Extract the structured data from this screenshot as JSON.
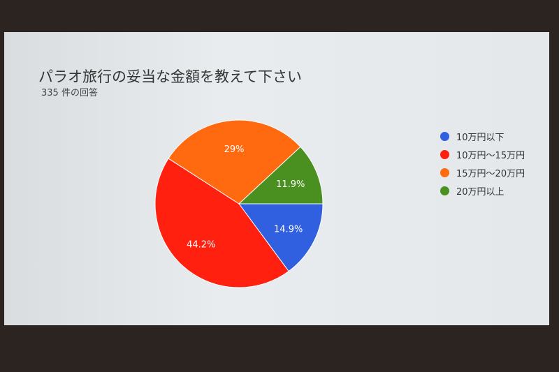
{
  "chart_data": {
    "type": "pie",
    "title": "パラオ旅行の妥当な金額を教えて下さい",
    "subtitle": "335 件の回答",
    "categories": [
      "10万円以下",
      "10万円～15万円",
      "15万円～20万円",
      "20万円以上"
    ],
    "values": [
      14.9,
      44.2,
      29,
      11.9
    ],
    "labels": [
      "14.9%",
      "44.2%",
      "29%",
      "11.9%"
    ],
    "colors": [
      "#3060e0",
      "#ff2010",
      "#ff6a10",
      "#4a9020"
    ],
    "legend": "right"
  }
}
